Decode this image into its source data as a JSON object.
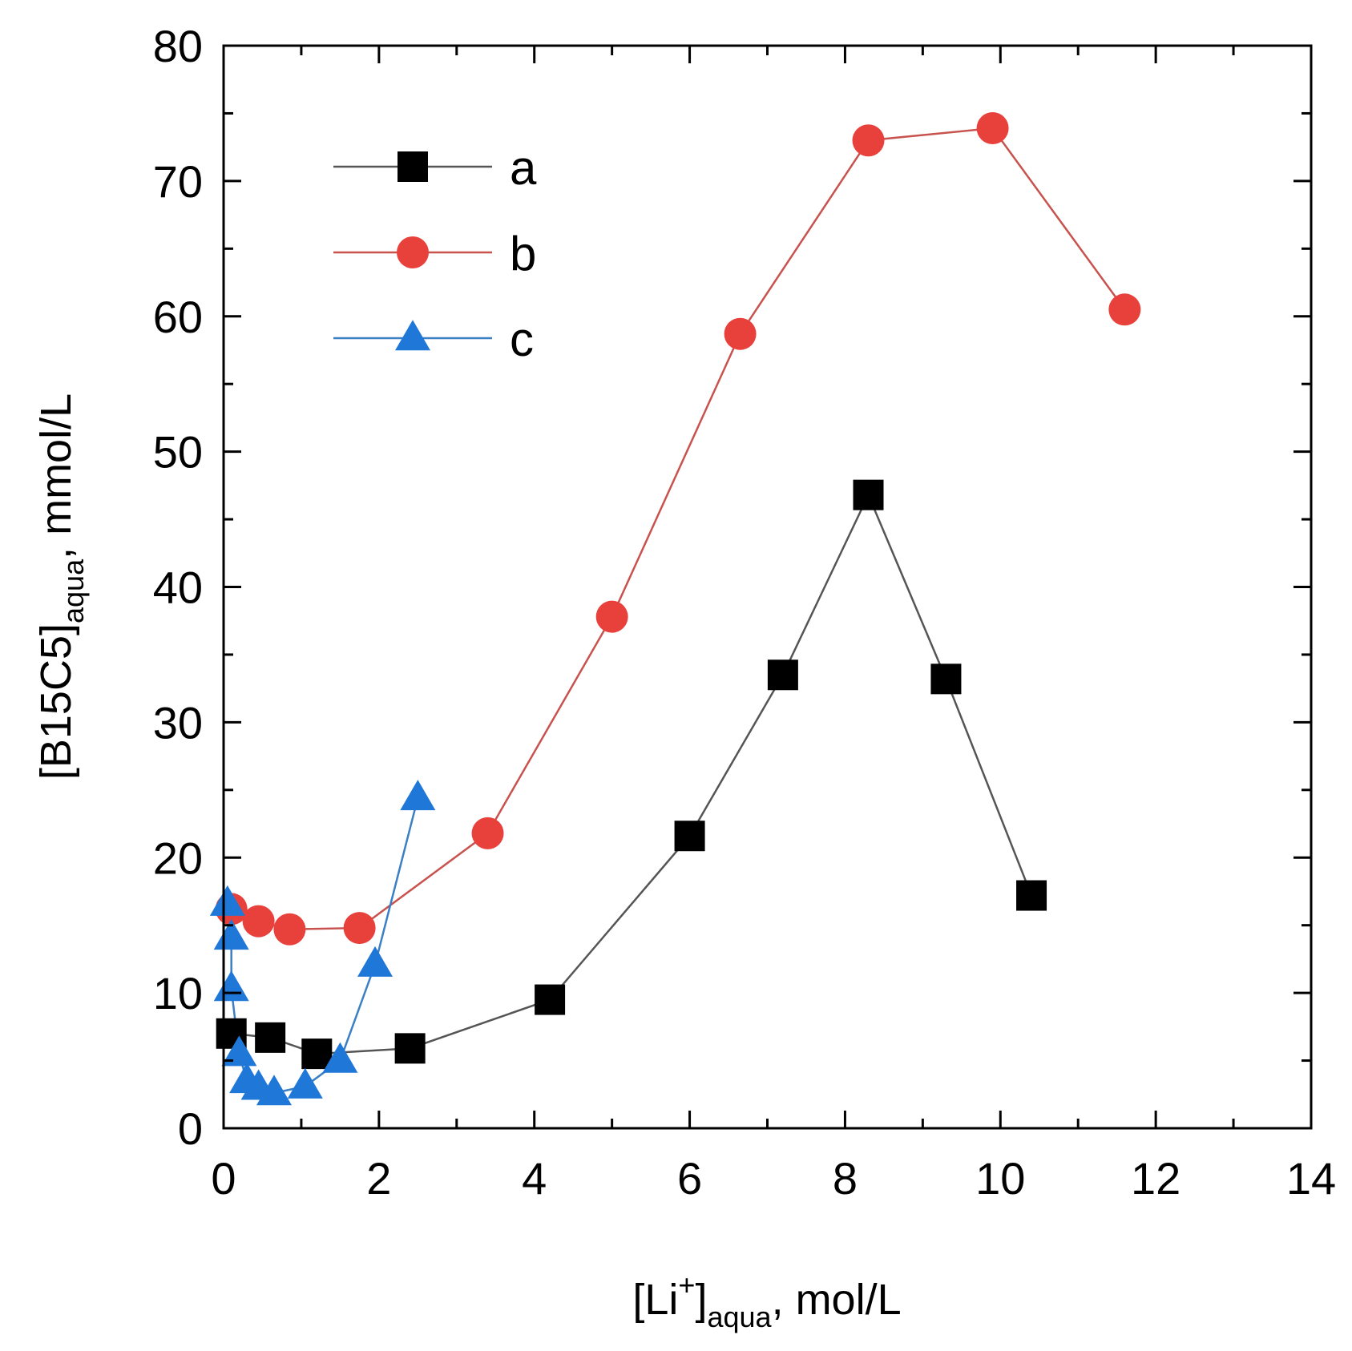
{
  "chart_data": {
    "type": "line",
    "title": "",
    "xlabel": {
      "main": "[Li",
      "sup": "+",
      "close": "]",
      "sub": "aqua",
      "unit": ", mol/L"
    },
    "ylabel": {
      "main": "[B15C5]",
      "sub": "aqua",
      "unit": ", mmol/L"
    },
    "xlim": [
      0,
      14
    ],
    "ylim": [
      0,
      80
    ],
    "xticks": [
      0,
      2,
      4,
      6,
      8,
      10,
      12,
      14
    ],
    "yticks": [
      0,
      10,
      20,
      30,
      40,
      50,
      60,
      70,
      80
    ],
    "grid": false,
    "legend_position": "top-left",
    "series": [
      {
        "name": "a",
        "marker": "square",
        "color": "#000000",
        "line_color": "#555555",
        "x": [
          0.1,
          0.6,
          1.2,
          2.4,
          4.2,
          6.0,
          7.2,
          8.3,
          9.3,
          10.4
        ],
        "y": [
          7.0,
          6.7,
          5.5,
          5.9,
          9.5,
          21.6,
          33.5,
          46.8,
          33.2,
          17.2
        ]
      },
      {
        "name": "b",
        "marker": "circle",
        "color": "#e8413c",
        "line_color": "#c8524e",
        "x": [
          0.1,
          0.45,
          0.85,
          1.75,
          3.4,
          5.0,
          6.65,
          8.3,
          9.9,
          11.6
        ],
        "y": [
          16.2,
          15.3,
          14.7,
          14.8,
          21.8,
          37.8,
          58.7,
          73.0,
          73.9,
          60.5
        ]
      },
      {
        "name": "c",
        "marker": "triangle",
        "color": "#1f77d8",
        "line_color": "#3b7fc4",
        "x": [
          0.05,
          0.1,
          0.1,
          0.2,
          0.3,
          0.45,
          0.65,
          1.05,
          1.5,
          1.95,
          2.5
        ],
        "y": [
          16.6,
          14.1,
          10.3,
          5.5,
          3.5,
          3.0,
          2.6,
          3.1,
          5.0,
          12.1,
          24.4
        ]
      }
    ]
  }
}
